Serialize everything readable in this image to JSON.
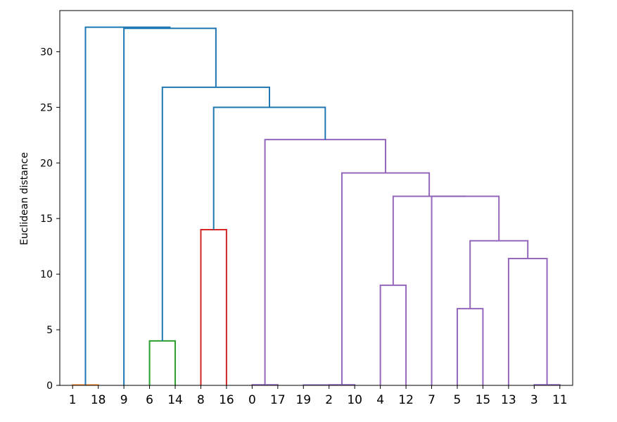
{
  "chart_data": {
    "type": "dendrogram",
    "ylabel": "Euclidean distance",
    "xlabel": "",
    "title": "",
    "ylim": [
      0,
      33.7
    ],
    "yticks": [
      0,
      5,
      10,
      15,
      20,
      25,
      30
    ],
    "grid": false,
    "leaf_order": [
      "1",
      "18",
      "9",
      "6",
      "14",
      "8",
      "16",
      "0",
      "17",
      "19",
      "2",
      "10",
      "4",
      "12",
      "7",
      "5",
      "15",
      "13",
      "3",
      "11"
    ],
    "colors": {
      "above_threshold": "#1f77b4",
      "orange": "#ff7f0e",
      "green": "#2ca02c",
      "red": "#d62728",
      "purple": "#9467bd"
    },
    "links": [
      {
        "x": [
          1,
          1,
          2,
          2
        ],
        "y": [
          0,
          0.03,
          0.03,
          0
        ],
        "color": "orange"
      },
      {
        "x": [
          4,
          4,
          5,
          5
        ],
        "y": [
          0,
          4.0,
          4.0,
          0
        ],
        "color": "green"
      },
      {
        "x": [
          6,
          6,
          7,
          7
        ],
        "y": [
          0,
          14.0,
          14.0,
          0
        ],
        "color": "red"
      },
      {
        "x": [
          8,
          8,
          9,
          9
        ],
        "y": [
          0,
          0.05,
          0.05,
          0
        ],
        "color": "purple"
      },
      {
        "x": [
          10,
          10,
          11,
          11
        ],
        "y": [
          0,
          0.03,
          0.03,
          0
        ],
        "color": "purple"
      },
      {
        "x": [
          11,
          11,
          12,
          12
        ],
        "y": [
          0,
          0.05,
          0.05,
          0
        ],
        "color": "purple"
      },
      {
        "x": [
          13,
          13,
          14,
          14
        ],
        "y": [
          0,
          9.0,
          9.0,
          0
        ],
        "color": "purple"
      },
      {
        "x": [
          16,
          16,
          17,
          17
        ],
        "y": [
          0,
          6.9,
          6.9,
          0
        ],
        "color": "purple"
      },
      {
        "x": [
          19,
          19,
          20,
          20
        ],
        "y": [
          0,
          0.05,
          0.05,
          0
        ],
        "color": "purple"
      },
      {
        "x": [
          18,
          18,
          19.5,
          19.5
        ],
        "y": [
          0,
          11.4,
          11.4,
          0.05
        ],
        "color": "purple"
      },
      {
        "x": [
          16.5,
          16.5,
          18.75,
          18.75
        ],
        "y": [
          6.9,
          13.0,
          13.0,
          11.4
        ],
        "color": "purple"
      },
      {
        "x": [
          15,
          15,
          17.625,
          17.625
        ],
        "y": [
          0,
          17.0,
          17.0,
          13.0
        ],
        "color": "purple"
      },
      {
        "x": [
          13.5,
          13.5,
          16.3125,
          16.3125
        ],
        "y": [
          9.0,
          17.0,
          17.0,
          17.0
        ],
        "color": "purple"
      },
      {
        "x": [
          11.5,
          11.5,
          14.90625,
          14.90625
        ],
        "y": [
          0.05,
          19.1,
          19.1,
          17.0
        ],
        "color": "purple"
      },
      {
        "x": [
          8.5,
          8.5,
          13.203125,
          13.203125
        ],
        "y": [
          0.05,
          22.1,
          22.1,
          19.1
        ],
        "color": "purple"
      },
      {
        "x": [
          6.5,
          6.5,
          10.8515625,
          10.8515625
        ],
        "y": [
          14.0,
          25.0,
          25.0,
          22.1
        ],
        "color": "above_threshold"
      },
      {
        "x": [
          4.5,
          4.5,
          8.67578125,
          8.67578125
        ],
        "y": [
          4.0,
          26.8,
          26.8,
          25.0
        ],
        "color": "above_threshold"
      },
      {
        "x": [
          3,
          3,
          6.587890625,
          6.587890625
        ],
        "y": [
          0,
          32.1,
          32.1,
          26.8
        ],
        "color": "above_threshold"
      },
      {
        "x": [
          1.5,
          1.5,
          4.7939453125,
          4.7939453125
        ],
        "y": [
          0.03,
          32.2,
          32.2,
          32.1
        ],
        "color": "above_threshold"
      }
    ]
  }
}
